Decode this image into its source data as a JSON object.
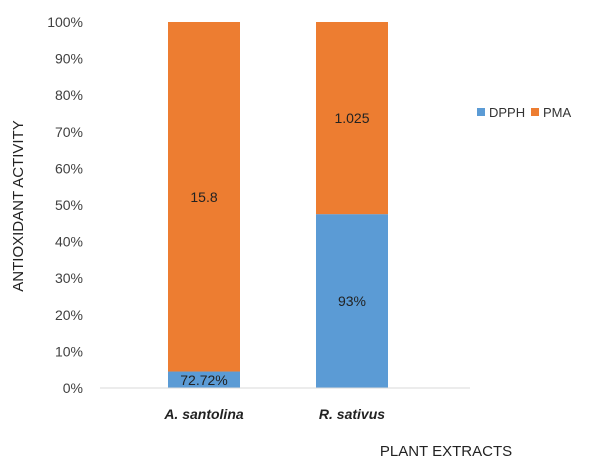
{
  "chart_data": {
    "type": "bar",
    "stacked": true,
    "percent_stacked": true,
    "categories": [
      "A. santolina",
      "R. sativus"
    ],
    "series": [
      {
        "name": "DPPH",
        "color": "#5B9BD5",
        "values": [
          4.5,
          47.5
        ],
        "labels": [
          "72.72%",
          "93%"
        ]
      },
      {
        "name": "PMA",
        "color": "#ED7D31",
        "values": [
          95.5,
          52.5
        ],
        "labels": [
          "15.8",
          "1.025"
        ]
      }
    ],
    "xlabel": "PLANT EXTRACTS",
    "ylabel": "ANTIOXIDANT ACTIVITY",
    "ylim": [
      0,
      100
    ],
    "y_ticks": [
      "0%",
      "10%",
      "20%",
      "30%",
      "40%",
      "50%",
      "60%",
      "70%",
      "80%",
      "90%",
      "100%"
    ],
    "grid": false,
    "legend": "right"
  }
}
